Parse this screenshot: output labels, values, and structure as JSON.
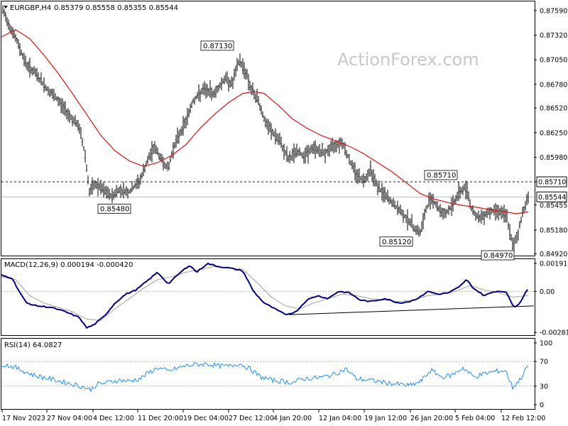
{
  "header": {
    "symbol": "EURGBP,H4",
    "ohlc": "0.85379 0.85558 0.85355 0.85544",
    "watermark": "ActionForex.com"
  },
  "colors": {
    "price": "#000000",
    "ma": "#e01010",
    "macd": "#000080",
    "signal": "#a0a0a0",
    "rsi": "#1e90ff",
    "trendline": "#000000"
  },
  "chart_data": [
    {
      "type": "bar",
      "ylim": [
        0.849,
        0.8769
      ],
      "price_ticks": [
        "0.87590",
        "0.87320",
        "0.87050",
        "0.86780",
        "0.86520",
        "0.86250",
        "0.85980",
        "0.85710",
        "0.85455",
        "0.85180",
        "0.84920"
      ],
      "current_price": "0.85544",
      "reference_level": "0.85710",
      "x_labels": [
        "17 Nov 2023",
        "27 Nov 04:00",
        "4 Dec 12:00",
        "11 Dec 20:00",
        "19 Dec 04:00",
        "27 Dec 12:00",
        "4 Jan 20:00",
        "12 Jan 04:00",
        "19 Jan 12:00",
        "26 Jan 20:00",
        "5 Feb 04:00",
        "12 Feb 12:00"
      ],
      "annotations": [
        {
          "label": "0.87130",
          "value": 0.8713
        },
        {
          "label": "0.85480",
          "value": 0.8548
        },
        {
          "label": "0.85710",
          "value": 0.8571
        },
        {
          "label": "0.85120",
          "value": 0.8512
        },
        {
          "label": "0.84970",
          "value": 0.8497
        }
      ],
      "close_path": [
        [
          0,
          0.8762
        ],
        [
          10,
          0.8745
        ],
        [
          22,
          0.8725
        ],
        [
          35,
          0.87
        ],
        [
          50,
          0.8688
        ],
        [
          65,
          0.8672
        ],
        [
          80,
          0.866
        ],
        [
          95,
          0.8645
        ],
        [
          110,
          0.863
        ],
        [
          118,
          0.86
        ],
        [
          124,
          0.856
        ],
        [
          132,
          0.8568
        ],
        [
          145,
          0.8561
        ],
        [
          155,
          0.8555
        ],
        [
          165,
          0.8562
        ],
        [
          180,
          0.856
        ],
        [
          195,
          0.8572
        ],
        [
          205,
          0.8592
        ],
        [
          215,
          0.861
        ],
        [
          225,
          0.8596
        ],
        [
          235,
          0.8585
        ],
        [
          242,
          0.8608
        ],
        [
          250,
          0.8622
        ],
        [
          260,
          0.8638
        ],
        [
          270,
          0.866
        ],
        [
          285,
          0.8672
        ],
        [
          300,
          0.8668
        ],
        [
          315,
          0.8685
        ],
        [
          325,
          0.8678
        ],
        [
          335,
          0.8705
        ],
        [
          345,
          0.869
        ],
        [
          352,
          0.8672
        ],
        [
          362,
          0.866
        ],
        [
          372,
          0.8635
        ],
        [
          382,
          0.8625
        ],
        [
          392,
          0.8615
        ],
        [
          405,
          0.8595
        ],
        [
          415,
          0.8605
        ],
        [
          425,
          0.86
        ],
        [
          440,
          0.8608
        ],
        [
          455,
          0.8602
        ],
        [
          470,
          0.8612
        ],
        [
          480,
          0.8615
        ],
        [
          490,
          0.8595
        ],
        [
          500,
          0.858
        ],
        [
          510,
          0.8572
        ],
        [
          520,
          0.8585
        ],
        [
          530,
          0.8565
        ],
        [
          545,
          0.8552
        ],
        [
          560,
          0.854
        ],
        [
          572,
          0.853
        ],
        [
          580,
          0.8522
        ],
        [
          590,
          0.8515
        ],
        [
          598,
          0.854
        ],
        [
          605,
          0.8555
        ],
        [
          615,
          0.8542
        ],
        [
          625,
          0.8535
        ],
        [
          635,
          0.8545
        ],
        [
          645,
          0.856
        ],
        [
          655,
          0.8565
        ],
        [
          662,
          0.8542
        ],
        [
          672,
          0.853
        ],
        [
          685,
          0.8538
        ],
        [
          700,
          0.854
        ],
        [
          712,
          0.8532
        ],
        [
          720,
          0.85
        ],
        [
          728,
          0.8515
        ],
        [
          735,
          0.854
        ],
        [
          742,
          0.8554
        ]
      ],
      "ma_path": [
        [
          0,
          0.873
        ],
        [
          20,
          0.8738
        ],
        [
          40,
          0.8728
        ],
        [
          60,
          0.871
        ],
        [
          80,
          0.869
        ],
        [
          100,
          0.8668
        ],
        [
          120,
          0.8645
        ],
        [
          140,
          0.8622
        ],
        [
          160,
          0.8605
        ],
        [
          180,
          0.8594
        ],
        [
          200,
          0.8588
        ],
        [
          220,
          0.8592
        ],
        [
          240,
          0.86
        ],
        [
          260,
          0.8612
        ],
        [
          280,
          0.863
        ],
        [
          300,
          0.8645
        ],
        [
          320,
          0.8658
        ],
        [
          340,
          0.8668
        ],
        [
          355,
          0.867
        ],
        [
          370,
          0.8668
        ],
        [
          390,
          0.8655
        ],
        [
          410,
          0.864
        ],
        [
          430,
          0.863
        ],
        [
          450,
          0.8622
        ],
        [
          470,
          0.8616
        ],
        [
          490,
          0.861
        ],
        [
          510,
          0.8602
        ],
        [
          530,
          0.8592
        ],
        [
          550,
          0.8582
        ],
        [
          570,
          0.857
        ],
        [
          590,
          0.8558
        ],
        [
          610,
          0.8552
        ],
        [
          630,
          0.8548
        ],
        [
          650,
          0.8545
        ],
        [
          670,
          0.8543
        ],
        [
          690,
          0.854
        ],
        [
          710,
          0.8538
        ],
        [
          725,
          0.8536
        ],
        [
          742,
          0.8538
        ]
      ]
    },
    {
      "type": "line",
      "label": "MACD(12,26,9) 0.000194 -0.000420",
      "ylim": [
        -0.003,
        0.0022
      ],
      "ticks": [
        "0.001911",
        "0.00",
        "-0.002816"
      ],
      "macd_path": [
        [
          0,
          0.0011
        ],
        [
          15,
          0.0009
        ],
        [
          25,
          0.0
        ],
        [
          35,
          -0.0008
        ],
        [
          50,
          -0.001
        ],
        [
          70,
          -0.0011
        ],
        [
          90,
          -0.0014
        ],
        [
          110,
          -0.0018
        ],
        [
          120,
          -0.0025
        ],
        [
          130,
          -0.0023
        ],
        [
          145,
          -0.0017
        ],
        [
          160,
          -0.0008
        ],
        [
          175,
          -0.0002
        ],
        [
          190,
          0.0001
        ],
        [
          205,
          0.0007
        ],
        [
          220,
          0.0013
        ],
        [
          235,
          0.0005
        ],
        [
          250,
          0.0012
        ],
        [
          265,
          0.0018
        ],
        [
          275,
          0.0013
        ],
        [
          290,
          0.0019
        ],
        [
          305,
          0.0017
        ],
        [
          320,
          0.0016
        ],
        [
          340,
          0.0014
        ],
        [
          355,
          0.0
        ],
        [
          370,
          -0.0008
        ],
        [
          385,
          -0.0012
        ],
        [
          400,
          -0.0016
        ],
        [
          415,
          -0.0014
        ],
        [
          430,
          -0.0006
        ],
        [
          445,
          -0.0003
        ],
        [
          460,
          -0.0005
        ],
        [
          475,
          0.0
        ],
        [
          490,
          -0.0001
        ],
        [
          505,
          -0.0006
        ],
        [
          520,
          -0.0007
        ],
        [
          540,
          -0.0005
        ],
        [
          560,
          -0.0008
        ],
        [
          575,
          -0.0007
        ],
        [
          590,
          -0.0004
        ],
        [
          600,
          0.0
        ],
        [
          615,
          -0.0002
        ],
        [
          630,
          -0.0001
        ],
        [
          645,
          0.0003
        ],
        [
          655,
          0.0008
        ],
        [
          665,
          0.0002
        ],
        [
          680,
          -0.0003
        ],
        [
          695,
          0.0
        ],
        [
          710,
          0.0
        ],
        [
          722,
          -0.0011
        ],
        [
          730,
          -0.0008
        ],
        [
          742,
          0.0002
        ]
      ],
      "signal_path": [
        [
          0,
          0.001
        ],
        [
          20,
          0.0008
        ],
        [
          40,
          -0.0003
        ],
        [
          60,
          -0.0008
        ],
        [
          80,
          -0.0011
        ],
        [
          100,
          -0.0014
        ],
        [
          120,
          -0.0019
        ],
        [
          140,
          -0.002
        ],
        [
          160,
          -0.0012
        ],
        [
          180,
          -0.0005
        ],
        [
          200,
          0.0002
        ],
        [
          220,
          0.0008
        ],
        [
          240,
          0.001
        ],
        [
          260,
          0.0013
        ],
        [
          280,
          0.0015
        ],
        [
          300,
          0.0017
        ],
        [
          320,
          0.0016
        ],
        [
          340,
          0.0015
        ],
        [
          360,
          0.0006
        ],
        [
          380,
          -0.0004
        ],
        [
          400,
          -0.001
        ],
        [
          420,
          -0.0012
        ],
        [
          440,
          -0.0008
        ],
        [
          460,
          -0.0005
        ],
        [
          480,
          -0.0002
        ],
        [
          500,
          -0.0003
        ],
        [
          520,
          -0.0005
        ],
        [
          540,
          -0.0006
        ],
        [
          560,
          -0.0007
        ],
        [
          580,
          -0.0006
        ],
        [
          600,
          -0.0003
        ],
        [
          620,
          -0.0002
        ],
        [
          640,
          0.0
        ],
        [
          660,
          0.0004
        ],
        [
          680,
          0.0001
        ],
        [
          700,
          -0.0001
        ],
        [
          720,
          -0.0004
        ],
        [
          742,
          -0.0003
        ]
      ],
      "trendline": [
        [
          405,
          -0.0016
        ],
        [
          752,
          -0.001
        ]
      ]
    },
    {
      "type": "line",
      "label": "RSI(14) 64.0827",
      "ylim": [
        0,
        100
      ],
      "ticks": [
        "100",
        "70",
        "30",
        "0"
      ],
      "levels": [
        70,
        30
      ],
      "rsi_path": [
        [
          0,
          66
        ],
        [
          15,
          62
        ],
        [
          30,
          55
        ],
        [
          45,
          48
        ],
        [
          60,
          44
        ],
        [
          75,
          40
        ],
        [
          90,
          36
        ],
        [
          105,
          32
        ],
        [
          118,
          28
        ],
        [
          125,
          24
        ],
        [
          135,
          33
        ],
        [
          150,
          36
        ],
        [
          165,
          40
        ],
        [
          180,
          38
        ],
        [
          195,
          42
        ],
        [
          205,
          50
        ],
        [
          220,
          60
        ],
        [
          235,
          54
        ],
        [
          245,
          58
        ],
        [
          260,
          63
        ],
        [
          275,
          65
        ],
        [
          290,
          66
        ],
        [
          305,
          63
        ],
        [
          320,
          62
        ],
        [
          335,
          67
        ],
        [
          350,
          58
        ],
        [
          365,
          45
        ],
        [
          380,
          40
        ],
        [
          395,
          38
        ],
        [
          410,
          36
        ],
        [
          425,
          42
        ],
        [
          440,
          43
        ],
        [
          455,
          45
        ],
        [
          470,
          50
        ],
        [
          485,
          58
        ],
        [
          500,
          42
        ],
        [
          515,
          40
        ],
        [
          530,
          38
        ],
        [
          545,
          35
        ],
        [
          560,
          33
        ],
        [
          575,
          31
        ],
        [
          590,
          37
        ],
        [
          605,
          56
        ],
        [
          620,
          45
        ],
        [
          635,
          48
        ],
        [
          650,
          60
        ],
        [
          665,
          45
        ],
        [
          680,
          50
        ],
        [
          695,
          54
        ],
        [
          710,
          55
        ],
        [
          720,
          28
        ],
        [
          730,
          40
        ],
        [
          742,
          64
        ]
      ]
    }
  ]
}
